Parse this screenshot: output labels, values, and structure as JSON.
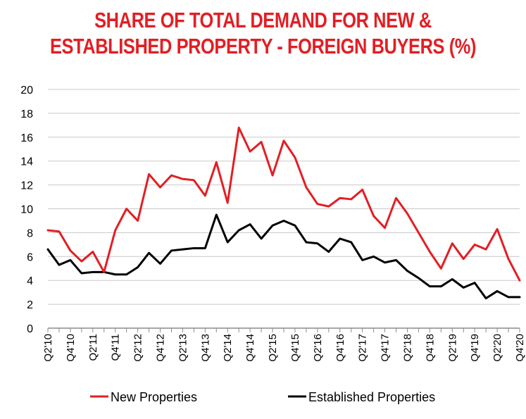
{
  "chart_data": {
    "type": "line",
    "title_lines": [
      "SHARE OF TOTAL DEMAND FOR NEW &",
      "ESTABLISHED PROPERTY - FOREIGN BUYERS (%)"
    ],
    "xlabel": "",
    "ylabel": "",
    "ylim": [
      0,
      20
    ],
    "yticks": [
      0,
      2,
      4,
      6,
      8,
      10,
      12,
      14,
      16,
      18,
      20
    ],
    "grid": true,
    "legend_position": "bottom",
    "x_tick_labels": [
      "Q2'10",
      "Q4'10",
      "Q2'11",
      "Q4'11",
      "Q2'12",
      "Q4'12",
      "Q2'13",
      "Q4'13",
      "Q2'14",
      "Q4'14",
      "Q2'15",
      "Q4'15",
      "Q2'16",
      "Q4'16",
      "Q2'17",
      "Q4'17",
      "Q2'18",
      "Q4'18",
      "Q2'19",
      "Q4'19",
      "Q2'20",
      "Q4'20"
    ],
    "categories": [
      "Q2'10",
      "Q3'10",
      "Q4'10",
      "Q1'11",
      "Q2'11",
      "Q3'11",
      "Q4'11",
      "Q1'12",
      "Q2'12",
      "Q3'12",
      "Q4'12",
      "Q1'13",
      "Q2'13",
      "Q3'13",
      "Q4'13",
      "Q1'14",
      "Q2'14",
      "Q3'14",
      "Q4'14",
      "Q1'15",
      "Q2'15",
      "Q3'15",
      "Q4'15",
      "Q1'16",
      "Q2'16",
      "Q3'16",
      "Q4'16",
      "Q1'17",
      "Q2'17",
      "Q3'17",
      "Q4'17",
      "Q1'18",
      "Q2'18",
      "Q3'18",
      "Q4'18",
      "Q1'19",
      "Q2'19",
      "Q3'19",
      "Q4'19",
      "Q1'20",
      "Q2'20",
      "Q3'20",
      "Q4'20"
    ],
    "series": [
      {
        "name": "New Properties",
        "color": "#e31e24",
        "values": [
          8.2,
          8.1,
          6.5,
          5.6,
          6.4,
          4.7,
          8.2,
          10.0,
          9.0,
          12.9,
          11.8,
          12.8,
          12.5,
          12.4,
          11.1,
          13.9,
          10.5,
          16.8,
          14.8,
          15.6,
          12.8,
          15.7,
          14.3,
          11.8,
          10.4,
          10.2,
          10.9,
          10.8,
          11.6,
          9.4,
          8.4,
          10.9,
          9.6,
          8.0,
          6.4,
          5.0,
          7.1,
          5.8,
          7.0,
          6.6,
          8.3,
          5.8,
          4.0
        ]
      },
      {
        "name": "Established Properties",
        "color": "#000000",
        "values": [
          6.6,
          5.3,
          5.7,
          4.6,
          4.7,
          4.7,
          4.5,
          4.5,
          5.1,
          6.3,
          5.4,
          6.5,
          6.6,
          6.7,
          6.7,
          9.5,
          7.2,
          8.2,
          8.7,
          7.5,
          8.6,
          9.0,
          8.6,
          7.2,
          7.1,
          6.4,
          7.5,
          7.2,
          5.7,
          6.0,
          5.5,
          5.7,
          4.8,
          4.2,
          3.5,
          3.5,
          4.1,
          3.4,
          3.8,
          2.5,
          3.1,
          2.6,
          2.6
        ]
      }
    ]
  }
}
